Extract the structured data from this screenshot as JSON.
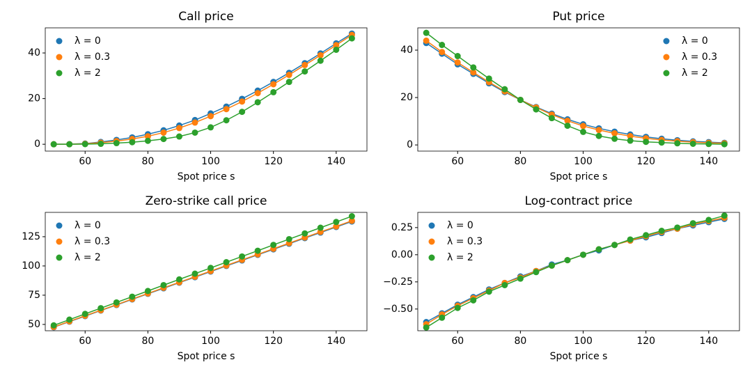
{
  "chart_data": [
    {
      "type": "line",
      "title": "Call price",
      "x_label": "Spot price s",
      "legend": "upper left",
      "x": [
        50,
        55,
        60,
        65,
        70,
        75,
        80,
        85,
        90,
        95,
        100,
        105,
        110,
        115,
        120,
        125,
        130,
        135,
        140,
        145
      ],
      "xlim": [
        47.3,
        149.8
      ],
      "xticks": [
        60,
        80,
        100,
        120,
        140
      ],
      "ylim": [
        -3,
        51
      ],
      "yticks": [
        0,
        20,
        40
      ],
      "series": [
        {
          "name": "λ = 0",
          "color": "#1f77b4",
          "values": [
            0,
            0.05,
            0.3,
            1,
            1.9,
            3,
            4.4,
            6.1,
            8.2,
            10.6,
            13.5,
            16.5,
            19.9,
            23.5,
            27.3,
            31.3,
            35.5,
            39.8,
            44.2,
            48.5
          ]
        },
        {
          "name": "λ = 0.3",
          "color": "#ff7f0e",
          "values": [
            0,
            0.03,
            0.2,
            0.7,
            1.4,
            2.3,
            3.5,
            5.1,
            7.1,
            9.5,
            12.3,
            15.4,
            18.7,
            22.4,
            26.3,
            30.4,
            34.7,
            39,
            43.4,
            47.9
          ]
        },
        {
          "name": "λ = 2",
          "color": "#2ca02c",
          "values": [
            0,
            0,
            0.05,
            0.2,
            0.5,
            0.9,
            1.5,
            2.3,
            3.4,
            5.1,
            7.4,
            10.5,
            14.2,
            18.4,
            22.8,
            27.3,
            31.9,
            36.6,
            41.4,
            46.4
          ]
        }
      ]
    },
    {
      "type": "line",
      "title": "Put price",
      "x_label": "Spot price s",
      "legend": "upper right",
      "x": [
        50,
        55,
        60,
        65,
        70,
        75,
        80,
        85,
        90,
        95,
        100,
        105,
        110,
        115,
        120,
        125,
        130,
        135,
        140,
        145
      ],
      "xlim": [
        47.3,
        149.8
      ],
      "xticks": [
        60,
        80,
        100,
        120,
        140
      ],
      "ylim": [
        -2.6,
        49.4
      ],
      "yticks": [
        0,
        20,
        40
      ],
      "series": [
        {
          "name": "λ = 0",
          "color": "#1f77b4",
          "values": [
            43,
            38.5,
            34,
            30,
            26,
            22.3,
            19,
            16,
            13.2,
            10.8,
            8.7,
            7,
            5.6,
            4.4,
            3.4,
            2.6,
            2,
            1.5,
            1.2,
            0.9
          ]
        },
        {
          "name": "λ = 0.3",
          "color": "#ff7f0e",
          "values": [
            44,
            39.2,
            34.8,
            30.6,
            26.5,
            22.6,
            19,
            15.8,
            12.8,
            10.2,
            8,
            6.3,
            4.9,
            3.7,
            2.8,
            2.1,
            1.6,
            1.2,
            0.9,
            0.7
          ]
        },
        {
          "name": "λ = 2",
          "color": "#2ca02c",
          "values": [
            47.3,
            42.2,
            37.5,
            32.7,
            28,
            23.5,
            19,
            15,
            11.3,
            8.1,
            5.5,
            3.8,
            2.6,
            1.8,
            1.3,
            1,
            0.7,
            0.5,
            0.4,
            0.3
          ]
        }
      ]
    },
    {
      "type": "line",
      "title": "Zero-strike call price",
      "x_label": "Spot price s",
      "legend": "upper left",
      "x": [
        50,
        55,
        60,
        65,
        70,
        75,
        80,
        85,
        90,
        95,
        100,
        105,
        110,
        115,
        120,
        125,
        130,
        135,
        140,
        145
      ],
      "xlim": [
        47.3,
        149.8
      ],
      "xticks": [
        60,
        80,
        100,
        120,
        140
      ],
      "ylim": [
        44.6,
        145.8
      ],
      "yticks": [
        50,
        75,
        100,
        125
      ],
      "series": [
        {
          "name": "λ = 0",
          "color": "#1f77b4",
          "values": [
            47.6,
            52.4,
            57.1,
            61.9,
            66.6,
            71.4,
            76.2,
            80.9,
            85.7,
            90.4,
            95.2,
            100,
            104.7,
            109.5,
            114.2,
            119,
            123.8,
            128.5,
            133.3,
            138
          ]
        },
        {
          "name": "λ = 0.3",
          "color": "#ff7f0e",
          "values": [
            47.8,
            52.6,
            57.4,
            62.1,
            66.9,
            71.7,
            76.5,
            81.3,
            86,
            90.8,
            95.6,
            100.4,
            105.2,
            109.9,
            114.7,
            119.5,
            124.3,
            129.1,
            133.8,
            138.6
          ]
        },
        {
          "name": "λ = 2",
          "color": "#2ca02c",
          "values": [
            49.2,
            54.1,
            59,
            63.9,
            68.8,
            73.7,
            78.6,
            83.6,
            88.5,
            93.4,
            98.3,
            103.2,
            108.1,
            113,
            118,
            122.9,
            127.8,
            132.7,
            137.6,
            142.5
          ]
        }
      ]
    },
    {
      "type": "line",
      "title": "Log-contract price",
      "x_label": "Spot price s",
      "legend": "upper left",
      "x": [
        50,
        55,
        60,
        65,
        70,
        75,
        80,
        85,
        90,
        95,
        100,
        105,
        110,
        115,
        120,
        125,
        130,
        135,
        140,
        145
      ],
      "xlim": [
        47.3,
        149.8
      ],
      "xticks": [
        60,
        80,
        100,
        120,
        140
      ],
      "ylim": [
        -0.7,
        0.39
      ],
      "yticks": [
        {
          "value": -0.5,
          "label": "−0.50"
        },
        {
          "value": -0.25,
          "label": "−0.25"
        },
        {
          "value": 0,
          "label": "0.00"
        },
        {
          "value": 0.25,
          "label": "0.25"
        }
      ],
      "series": [
        {
          "name": "λ = 0",
          "color": "#1f77b4",
          "values": [
            -0.62,
            -0.54,
            -0.46,
            -0.39,
            -0.32,
            -0.26,
            -0.2,
            -0.15,
            -0.09,
            -0.05,
            0,
            0.04,
            0.09,
            0.13,
            0.16,
            0.2,
            0.24,
            0.27,
            0.3,
            0.33
          ]
        },
        {
          "name": "λ = 0.3",
          "color": "#ff7f0e",
          "values": [
            -0.64,
            -0.55,
            -0.47,
            -0.4,
            -0.33,
            -0.26,
            -0.21,
            -0.15,
            -0.1,
            -0.05,
            0,
            0.05,
            0.09,
            0.13,
            0.17,
            0.21,
            0.24,
            0.28,
            0.31,
            0.34
          ]
        },
        {
          "name": "λ = 2",
          "color": "#2ca02c",
          "values": [
            -0.67,
            -0.58,
            -0.49,
            -0.42,
            -0.34,
            -0.28,
            -0.22,
            -0.16,
            -0.1,
            -0.05,
            0,
            0.05,
            0.09,
            0.14,
            0.18,
            0.22,
            0.25,
            0.29,
            0.32,
            0.36
          ]
        }
      ]
    }
  ]
}
